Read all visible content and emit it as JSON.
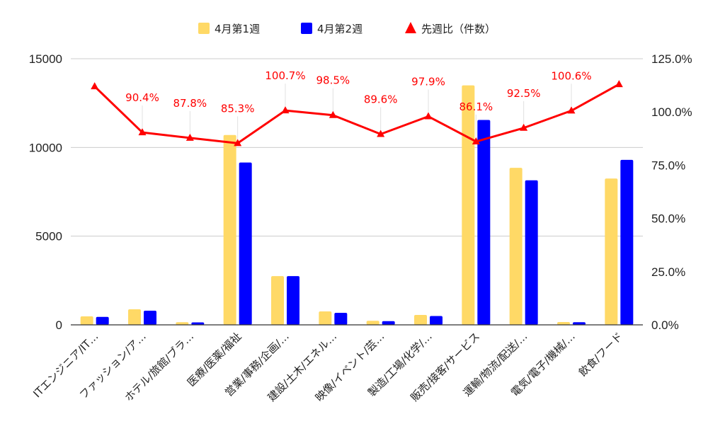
{
  "chart_data": {
    "type": "bar",
    "categories": [
      "ITエンジニア/IT…",
      "ファッション/ア…",
      "ホテル/旅館/ブラ…",
      "医療/医薬/福祉",
      "営業/事務/企画/…",
      "建設/土木/エネル…",
      "映像/イベント/芸…",
      "製造/工場/化学/…",
      "販売/接客/サービス",
      "運輸/物流/配送/…",
      "電気/電子/機械/…",
      "飲食/フード"
    ],
    "series": [
      {
        "name": "4月第1週",
        "type": "bar",
        "axis": "left",
        "color": "#FFD966",
        "values": [
          480,
          880,
          150,
          10700,
          2750,
          760,
          230,
          560,
          13500,
          8850,
          160,
          8250
        ]
      },
      {
        "name": "4月第2週",
        "type": "bar",
        "axis": "left",
        "color": "#0000FF",
        "values": [
          450,
          800,
          140,
          9150,
          2750,
          680,
          210,
          500,
          11550,
          8150,
          150,
          9300
        ]
      },
      {
        "name": "先週比（件数）",
        "type": "line",
        "axis": "right",
        "color": "#FF0000",
        "marker": "triangle",
        "values": [
          112.0,
          90.4,
          87.8,
          85.3,
          100.7,
          98.5,
          89.6,
          97.9,
          86.1,
          92.5,
          100.6,
          113.0
        ]
      }
    ],
    "data_labels": [
      "",
      "90.4%",
      "87.8%",
      "85.3%",
      "100.7%",
      "98.5%",
      "89.6%",
      "97.9%",
      "86.1%",
      "92.5%",
      "100.6%",
      ""
    ],
    "y_left": {
      "ticks": [
        "0",
        "5000",
        "10000",
        "15000"
      ],
      "ylim": [
        0,
        15000
      ]
    },
    "y_right": {
      "ticks": [
        "0.0%",
        "25.0%",
        "50.0%",
        "75.0%",
        "100.0%",
        "125.0%"
      ],
      "ylim": [
        0,
        125
      ]
    },
    "legend_position": "top",
    "grid": true,
    "xlabel": "",
    "ylabel": "",
    "title": ""
  }
}
